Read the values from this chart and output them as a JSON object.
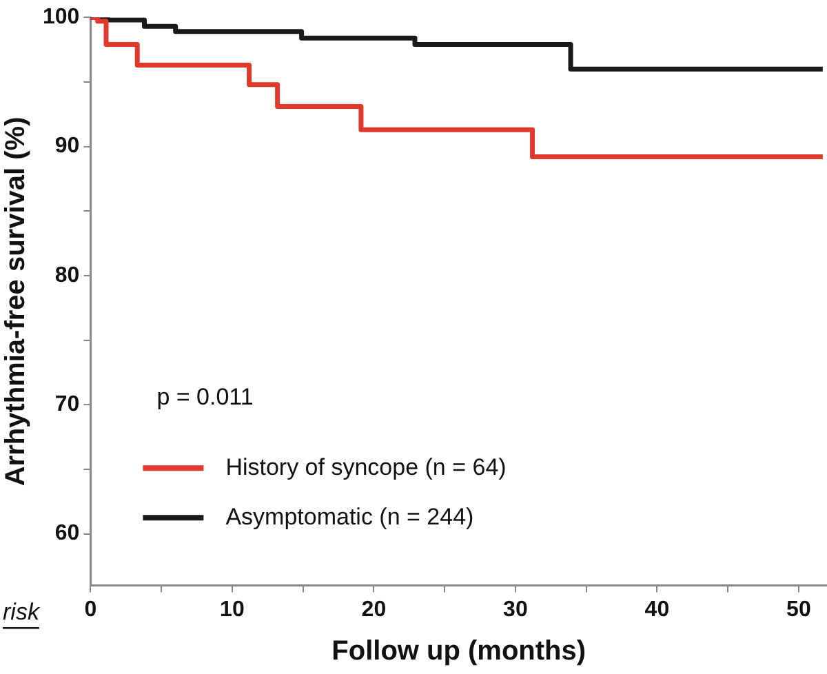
{
  "chart_data": {
    "type": "step",
    "xlabel": "Follow up (months)",
    "ylabel": "Arrhythmia-free survival (%)",
    "xlim": [
      0,
      52
    ],
    "ylim": [
      56,
      100
    ],
    "xticks": [
      0,
      {
        "value": 5,
        "label": null
      },
      10,
      {
        "value": 15,
        "label": null
      },
      20,
      {
        "value": 25,
        "label": null
      },
      30,
      {
        "value": 35,
        "label": null
      },
      40,
      {
        "value": 45,
        "label": null
      },
      50
    ],
    "yticks": [
      60,
      {
        "value": 65,
        "label": null
      },
      70,
      {
        "value": 75,
        "label": null
      },
      80,
      {
        "value": 85,
        "label": null
      },
      90,
      {
        "value": 95,
        "label": null
      },
      100
    ],
    "series": [
      {
        "name": "History of syncope (n = 64)",
        "color": "#e0392b",
        "x": [
          0,
          0.5,
          1.1,
          3.3,
          11.2,
          13.2,
          19.1,
          31.2,
          51.7
        ],
        "values": [
          100,
          99.7,
          97.9,
          96.3,
          94.8,
          93.1,
          91.3,
          89.2,
          89.2
        ]
      },
      {
        "name": "Asymptomatic (n = 244)",
        "color": "#1a1a1a",
        "x": [
          0,
          1.2,
          3.8,
          6.0,
          14.9,
          22.9,
          33.9,
          51.7
        ],
        "values": [
          100,
          99.8,
          99.3,
          98.9,
          98.4,
          97.9,
          96.0,
          96.0
        ]
      }
    ],
    "annotations": [
      "p = 0.011",
      "risk"
    ],
    "legend": "bottom left",
    "grid": false,
    "marker": "none",
    "line_style": "solid"
  }
}
